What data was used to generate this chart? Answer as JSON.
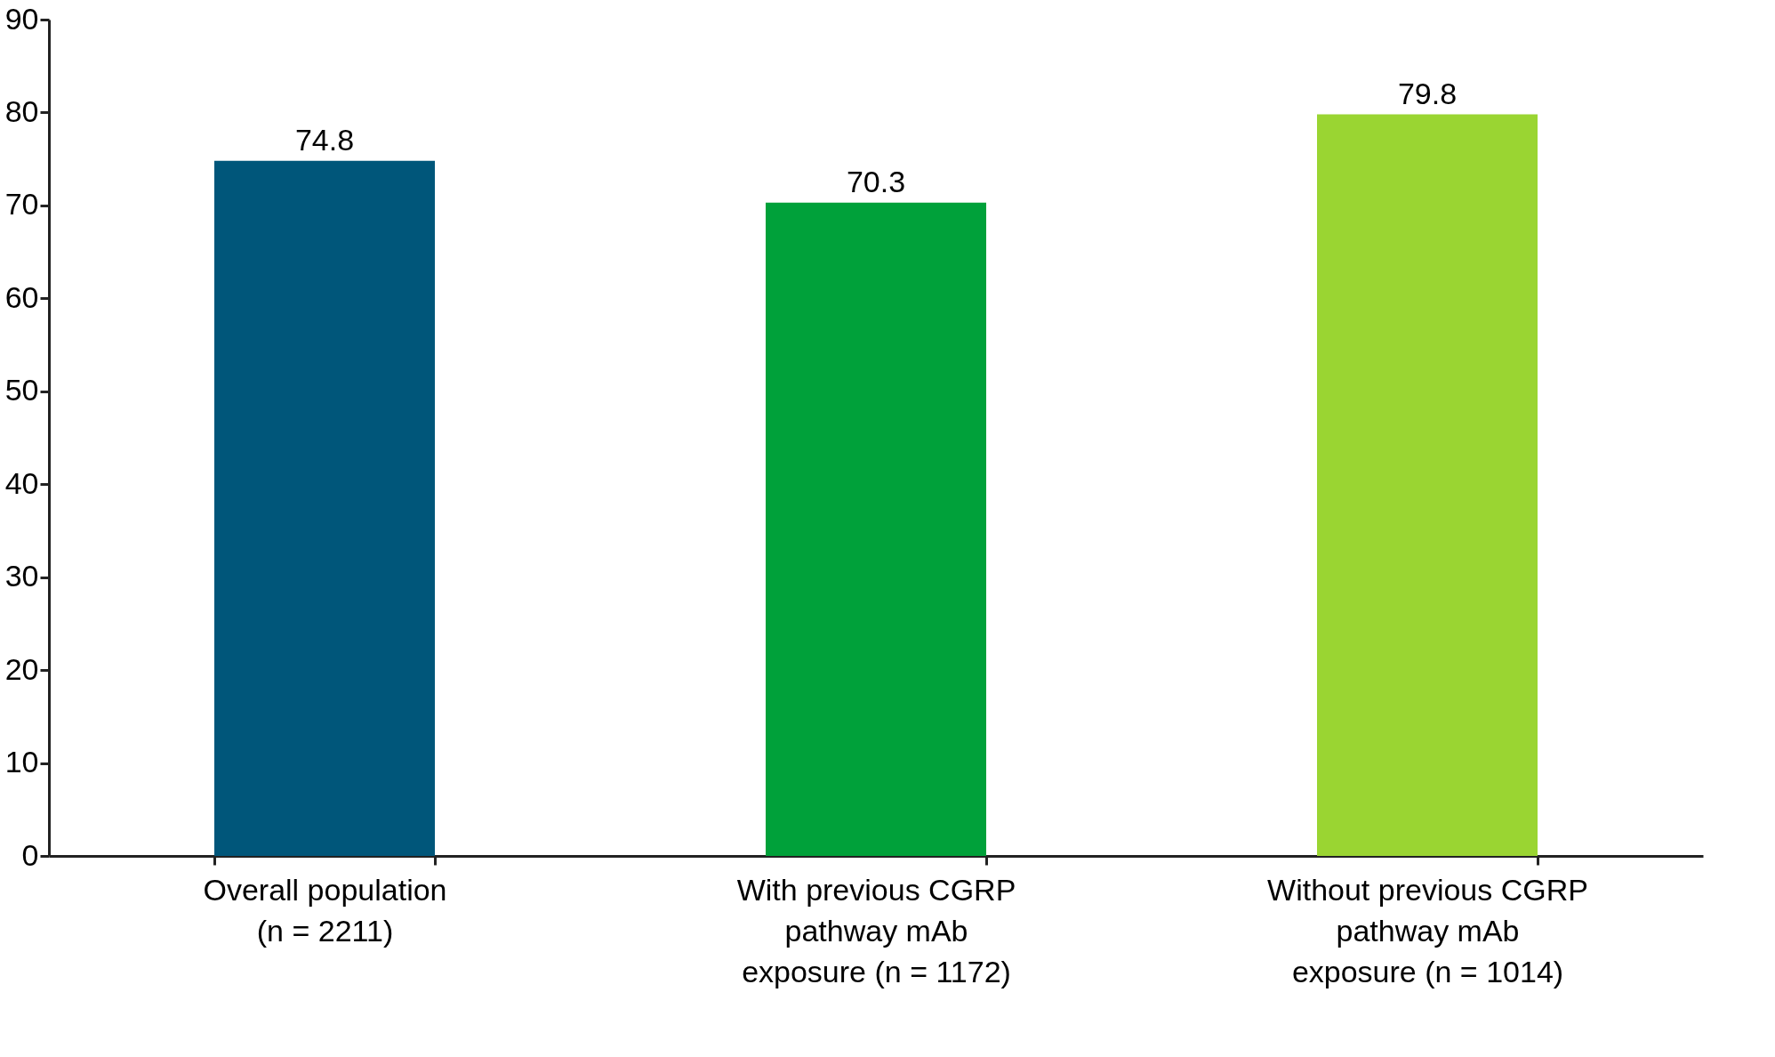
{
  "chart_data": {
    "type": "bar",
    "categories": [
      "Overall population\n(n = 2211)",
      "With previous CGRP\npathway mAb\nexposure (n = 1172)",
      "Without previous CGRP\npathway mAb\nexposure (n = 1014)"
    ],
    "values": [
      74.8,
      70.3,
      79.8
    ],
    "colors": [
      "#00567a",
      "#00a13a",
      "#9ad532"
    ],
    "ylim": [
      0,
      90
    ],
    "yticks": [
      0,
      10,
      20,
      30,
      40,
      50,
      60,
      70,
      80,
      90
    ],
    "grid": false,
    "data_labels": true
  }
}
